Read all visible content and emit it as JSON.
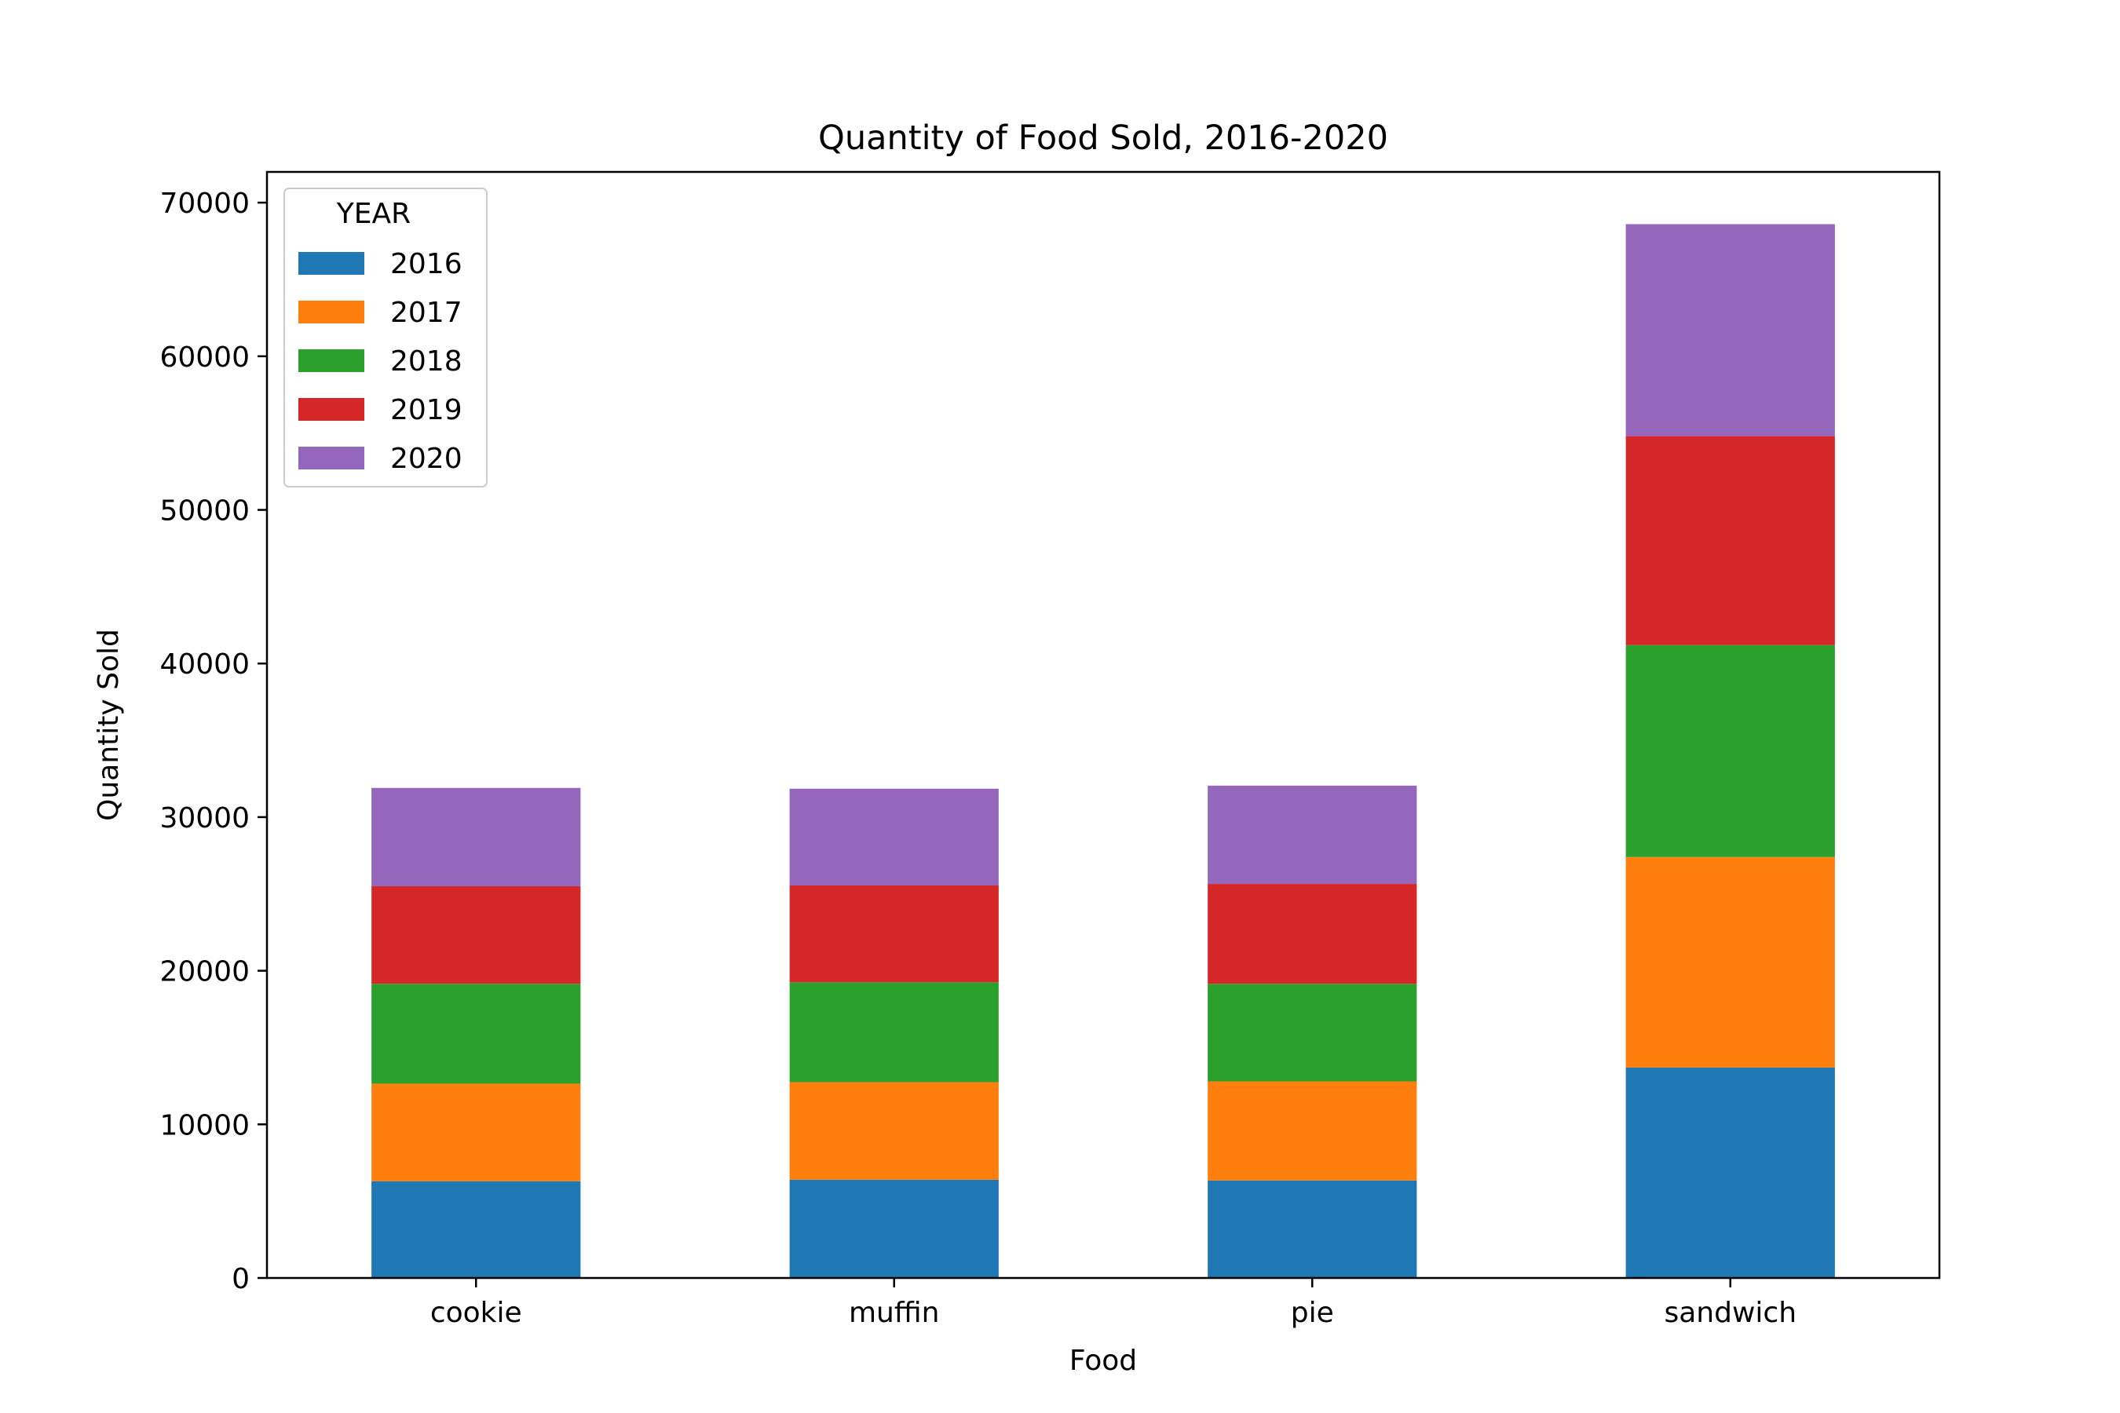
{
  "chart_data": {
    "type": "bar",
    "stacked": true,
    "title": "Quantity of Food Sold, 2016-2020",
    "xlabel": "Food",
    "ylabel": "Quantity Sold",
    "categories": [
      "cookie",
      "muffin",
      "pie",
      "sandwich"
    ],
    "ylim": [
      0,
      72000
    ],
    "yticks": [
      0,
      10000,
      20000,
      30000,
      40000,
      50000,
      60000,
      70000
    ],
    "grid": false,
    "legend": {
      "title": "YEAR",
      "placement": "top-left"
    },
    "series": [
      {
        "name": "2016",
        "color": "#1f77b4",
        "values": [
          6300,
          6400,
          6350,
          13700
        ]
      },
      {
        "name": "2017",
        "color": "#ff7f0e",
        "values": [
          6350,
          6350,
          6450,
          13700
        ]
      },
      {
        "name": "2018",
        "color": "#2ca02c",
        "values": [
          6500,
          6500,
          6350,
          13800
        ]
      },
      {
        "name": "2019",
        "color": "#d62728",
        "values": [
          6350,
          6300,
          6500,
          13600
        ]
      },
      {
        "name": "2020",
        "color": "#9467bd",
        "values": [
          6400,
          6300,
          6400,
          13800
        ]
      }
    ]
  }
}
